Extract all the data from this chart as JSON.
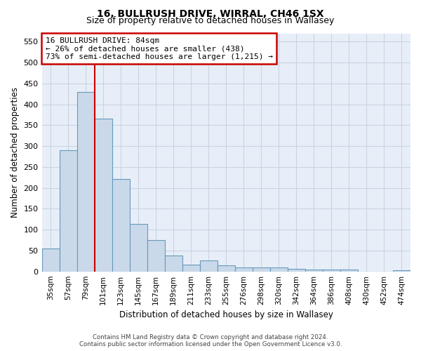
{
  "title": "16, BULLRUSH DRIVE, WIRRAL, CH46 1SX",
  "subtitle": "Size of property relative to detached houses in Wallasey",
  "xlabel": "Distribution of detached houses by size in Wallasey",
  "ylabel": "Number of detached properties",
  "bin_labels": [
    "35sqm",
    "57sqm",
    "79sqm",
    "101sqm",
    "123sqm",
    "145sqm",
    "167sqm",
    "189sqm",
    "211sqm",
    "233sqm",
    "255sqm",
    "276sqm",
    "298sqm",
    "320sqm",
    "342sqm",
    "364sqm",
    "386sqm",
    "408sqm",
    "430sqm",
    "452sqm",
    "474sqm"
  ],
  "bar_values": [
    55,
    290,
    430,
    365,
    222,
    113,
    75,
    38,
    16,
    27,
    14,
    9,
    10,
    10,
    6,
    5,
    5,
    5,
    0,
    0,
    3
  ],
  "bar_color": "#c9d9ea",
  "bar_edge_color": "#6699bb",
  "red_line_color": "#cc0000",
  "annotation_text": "16 BULLRUSH DRIVE: 84sqm\n← 26% of detached houses are smaller (438)\n73% of semi-detached houses are larger (1,215) →",
  "annotation_box_color": "#ffffff",
  "annotation_box_edge_color": "#cc0000",
  "footer_line1": "Contains HM Land Registry data © Crown copyright and database right 2024.",
  "footer_line2": "Contains public sector information licensed under the Open Government Licence v3.0.",
  "ylim": [
    0,
    570
  ],
  "yticks": [
    0,
    50,
    100,
    150,
    200,
    250,
    300,
    350,
    400,
    450,
    500,
    550
  ],
  "grid_color": "#c8d4e4",
  "background_color": "#e8eef8"
}
